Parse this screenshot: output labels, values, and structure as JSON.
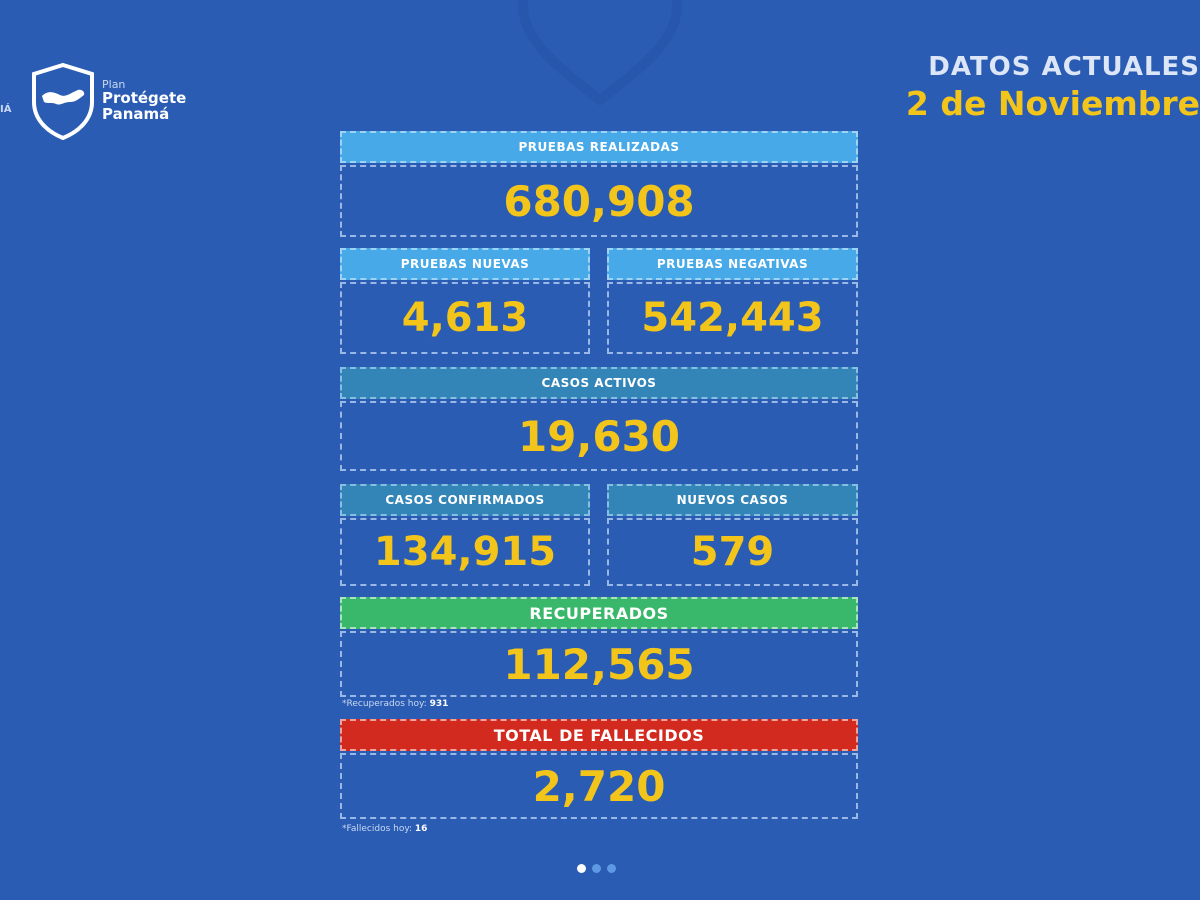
{
  "left_edge_text": "IÁ",
  "logo": {
    "line1": "Plan",
    "line2": "Protégete",
    "line3": "Panamá"
  },
  "header": {
    "title": "DATOS ACTUALES",
    "date": "2 de Noviembre"
  },
  "stats": {
    "pruebas_realizadas": {
      "label": "PRUEBAS REALIZADAS",
      "value": "680,908"
    },
    "pruebas_nuevas": {
      "label": "PRUEBAS NUEVAS",
      "value": "4,613"
    },
    "pruebas_negativas": {
      "label": "PRUEBAS NEGATIVAS",
      "value": "542,443"
    },
    "casos_activos": {
      "label": "CASOS ACTIVOS",
      "value": "19,630"
    },
    "casos_confirmados": {
      "label": "CASOS CONFIRMADOS",
      "value": "134,915"
    },
    "nuevos_casos": {
      "label": "NUEVOS CASOS",
      "value": "579"
    },
    "recuperados": {
      "label": "RECUPERADOS",
      "value": "112,565",
      "note_label": "*Recuperados hoy:",
      "note_value": "931"
    },
    "fallecidos": {
      "label": "TOTAL DE FALLECIDOS",
      "value": "2,720",
      "note_label": "*Fallecidos hoy:",
      "note_value": "16"
    }
  },
  "carousel": {
    "pages": 3,
    "active": 1
  },
  "colors": {
    "background": "#2a5cb4",
    "value_yellow": "#f3c51b",
    "label_light_blue": "#47a9e7",
    "label_teal": "#3385b8",
    "label_green": "#39b76b",
    "label_red": "#d22a1f"
  }
}
